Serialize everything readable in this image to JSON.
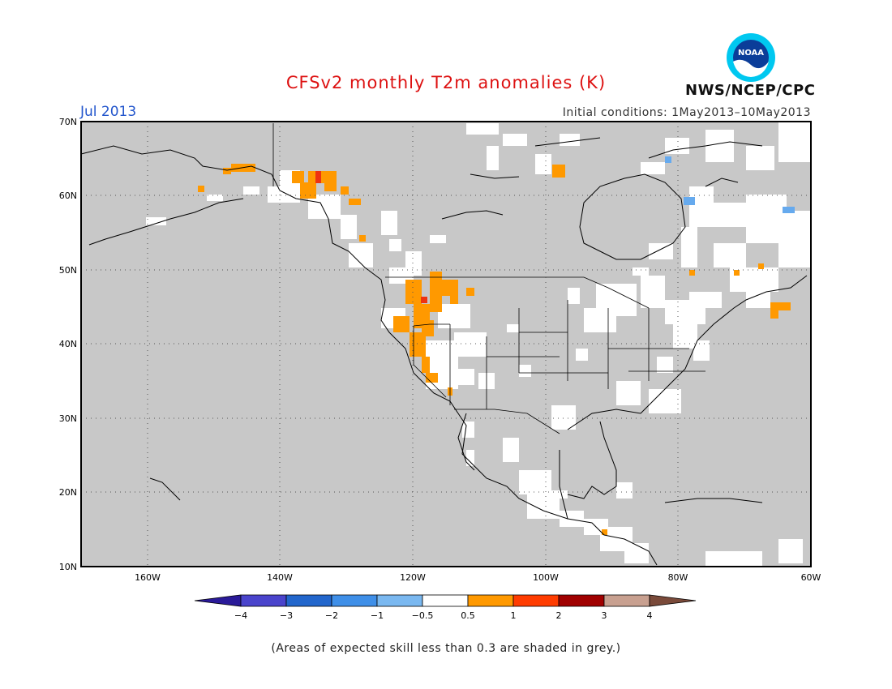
{
  "header": {
    "title": "CFSv2 monthly T2m anomalies (K)",
    "month": "Jul 2013",
    "initial_conditions": "Initial conditions: 1May2013–10May2013",
    "agency": "NWS/NCEP/CPC",
    "logo_text": "NOAA"
  },
  "colors": {
    "title": "#dd1111",
    "month": "#2255cc",
    "land_mask_grey": "#c8c8c8",
    "positive_anomaly": "#ff9900",
    "strong_positive_anomaly": "#ee3311",
    "negative_anomaly": "#66aaee"
  },
  "map": {
    "lat_labels": [
      "70N",
      "60N",
      "50N",
      "40N",
      "30N",
      "20N",
      "10N"
    ],
    "lon_labels": [
      "160W",
      "140W",
      "120W",
      "100W",
      "80W",
      "60W"
    ],
    "extent": {
      "lon": [
        -170,
        -60
      ],
      "lat": [
        10,
        70
      ]
    }
  },
  "colorbar": {
    "labels": [
      "−4",
      "−3",
      "−2",
      "−1",
      "−0.5",
      "0.5",
      "1",
      "2",
      "3",
      "4"
    ],
    "colors": [
      "#2a1a99",
      "#4a44cc",
      "#2266cc",
      "#3f8fe8",
      "#7ab8f0",
      "#ffffff",
      "#ff9900",
      "#ff3c00",
      "#a00000",
      "#c8a090",
      "#7a4a3a"
    ]
  },
  "footnote": "(Areas of expected skill less than 0.3 are shaded in grey.)"
}
